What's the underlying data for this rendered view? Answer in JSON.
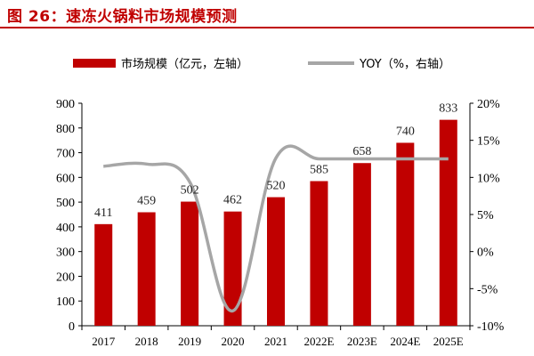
{
  "header": {
    "title": "图 26：速冻火锅料市场规模预测"
  },
  "colors": {
    "bar": "#c00000",
    "line": "#a6a6a6",
    "title": "#c00000"
  },
  "chart_data": {
    "type": "bar",
    "categories": [
      "2017",
      "2018",
      "2019",
      "2020",
      "2021",
      "2022E",
      "2023E",
      "2024E",
      "2025E"
    ],
    "series": [
      {
        "name": "市场规模（亿元，左轴）",
        "type": "bar",
        "axis": "left",
        "values": [
          411,
          459,
          502,
          462,
          520,
          585,
          658,
          740,
          833
        ]
      },
      {
        "name": "YOY（%，右轴）",
        "type": "line",
        "axis": "right",
        "values": [
          11.5,
          11.8,
          9.4,
          -8.0,
          12.6,
          12.5,
          12.5,
          12.5,
          12.5
        ]
      }
    ],
    "data_labels": [
      "411",
      "459",
      "502",
      "462",
      "520",
      "585",
      "658",
      "740",
      "833"
    ],
    "left_axis": {
      "ylim": [
        0,
        900
      ],
      "ticks": [
        "0",
        "100",
        "200",
        "300",
        "400",
        "500",
        "600",
        "700",
        "800",
        "900"
      ]
    },
    "right_axis": {
      "ylim": [
        -10,
        20
      ],
      "ticks": [
        "-10%",
        "-5%",
        "0%",
        "5%",
        "10%",
        "15%",
        "20%"
      ]
    },
    "legend_position": "top",
    "grid": false
  }
}
